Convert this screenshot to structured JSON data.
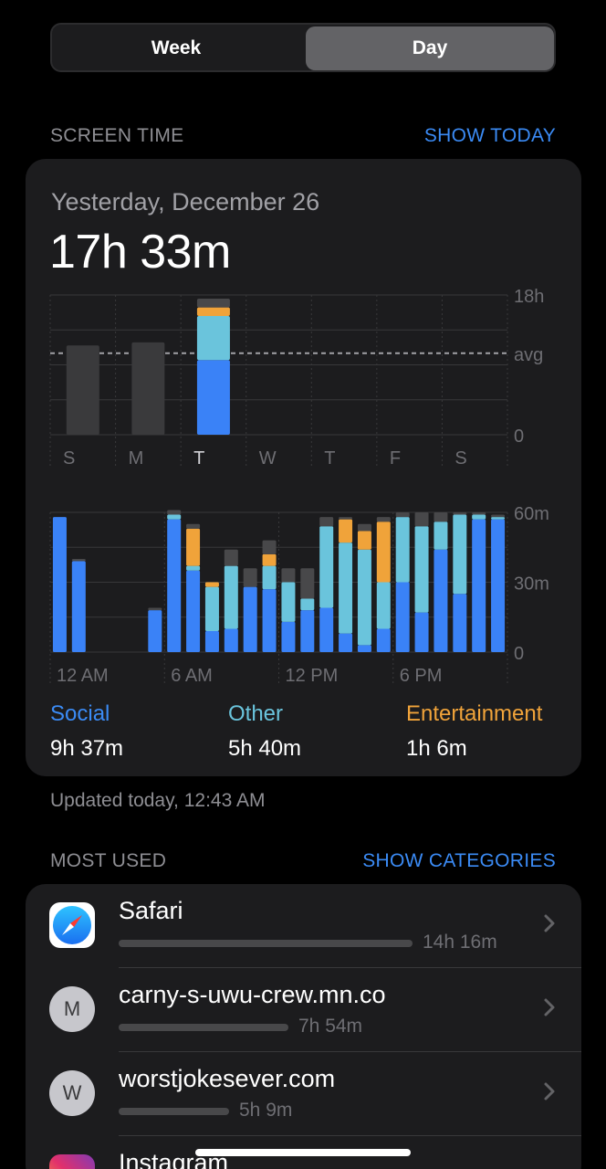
{
  "segmented": {
    "week_label": "Week",
    "day_label": "Day",
    "selected": "Day"
  },
  "screen_time": {
    "header": "SCREEN TIME",
    "action": "SHOW TODAY",
    "date": "Yesterday, December 26",
    "total": "17h 33m",
    "updated": "Updated today, 12:43 AM"
  },
  "colors": {
    "social": "#3a82f7",
    "other": "#6ac4dc",
    "entertainment": "#f0a33a",
    "uncategorized": "#48484a",
    "past_day": "#3a3a3c",
    "accent": "#3b8bf5"
  },
  "chart_data": [
    {
      "type": "bar",
      "categories": [
        "S",
        "M",
        "T",
        "W",
        "T",
        "F",
        "S"
      ],
      "y_ticks": [
        "18h",
        "avg",
        "0"
      ],
      "ylim": [
        0,
        18
      ],
      "unit": "h",
      "series": [
        {
          "name": "Social",
          "values": [
            0,
            0,
            9.62,
            0,
            0,
            0,
            0
          ]
        },
        {
          "name": "Other",
          "values": [
            0,
            0,
            5.67,
            0,
            0,
            0,
            0
          ]
        },
        {
          "name": "Entertainment",
          "values": [
            0,
            0,
            1.1,
            0,
            0,
            0,
            0
          ]
        },
        {
          "values": [
            11.5,
            11.9,
            1.14,
            0,
            0,
            0,
            0
          ]
        }
      ],
      "avg": 10.5,
      "highlight_index": 2
    },
    {
      "type": "bar",
      "categories": [
        "12 AM",
        "1 AM",
        "2 AM",
        "3 AM",
        "4 AM",
        "5 AM",
        "6 AM",
        "7 AM",
        "8 AM",
        "9 AM",
        "10 AM",
        "11 AM",
        "12 PM",
        "1 PM",
        "2 PM",
        "3 PM",
        "4 PM",
        "5 PM",
        "6 PM",
        "7 PM",
        "8 PM",
        "9 PM",
        "10 PM",
        "11 PM"
      ],
      "x_tick_labels": [
        "12 AM",
        "6 AM",
        "12 PM",
        "6 PM"
      ],
      "y_ticks": [
        "60m",
        "30m",
        "0"
      ],
      "ylim": [
        0,
        60
      ],
      "unit": "m",
      "series": [
        {
          "name": "Social",
          "values": [
            58,
            39,
            0,
            0,
            0,
            18,
            57,
            35,
            9,
            10,
            28,
            27,
            13,
            18,
            19,
            8,
            3,
            10,
            30,
            17,
            44,
            25,
            57,
            57
          ]
        },
        {
          "name": "Other",
          "values": [
            0,
            0,
            0,
            0,
            0,
            0,
            2,
            2,
            19,
            27,
            0,
            10,
            17,
            5,
            35,
            39,
            41,
            20,
            28,
            37,
            12,
            34,
            2,
            1
          ]
        },
        {
          "name": "Entertainment",
          "values": [
            0,
            0,
            0,
            0,
            0,
            0,
            0,
            16,
            2,
            0,
            0,
            5,
            0,
            0,
            0,
            10,
            8,
            26,
            0,
            0,
            0,
            0,
            0,
            0
          ]
        },
        {
          "values": [
            0,
            1,
            0,
            0,
            0,
            1,
            2,
            2,
            0,
            7,
            8,
            6,
            6,
            13,
            4,
            1,
            3,
            2,
            2,
            6,
            4,
            1,
            1,
            1
          ]
        }
      ]
    }
  ],
  "legend": [
    {
      "name": "Social",
      "value": "9h 37m",
      "color": "#3b8bf5"
    },
    {
      "name": "Other",
      "value": "5h 40m",
      "color": "#6ac4dc"
    },
    {
      "name": "Entertainment",
      "value": "1h 6m",
      "color": "#f0a33a"
    }
  ],
  "most_used": {
    "header": "MOST USED",
    "action": "SHOW CATEGORIES",
    "apps": [
      {
        "name": "Safari",
        "time": "14h 16m",
        "icon": "safari-icon",
        "fraction": 1.0
      },
      {
        "name": "carny-s-uwu-crew.mn.co",
        "time": "7h 54m",
        "icon": "letter-m-icon",
        "letter": "M",
        "fraction": 0.553
      },
      {
        "name": "worstjokesever.com",
        "time": "5h 9m",
        "icon": "letter-w-icon",
        "letter": "W",
        "fraction": 0.361
      },
      {
        "name": "Instagram",
        "time": "",
        "icon": "instagram-icon",
        "fraction": 0
      }
    ]
  }
}
